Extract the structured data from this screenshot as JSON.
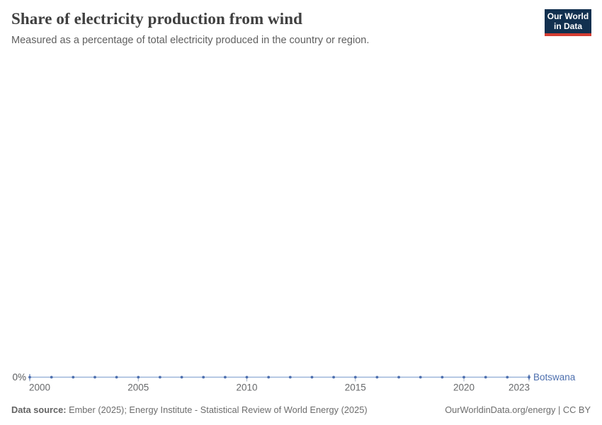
{
  "header": {
    "title": "Share of electricity production from wind",
    "subtitle": "Measured as a percentage of total electricity produced in the country or region.",
    "logo": {
      "line1": "Our World",
      "line2": "in Data",
      "bg_color": "#12304f",
      "accent_color": "#d43d32"
    }
  },
  "chart_data": {
    "type": "line",
    "title": "Share of electricity production from wind",
    "subtitle": "Measured as a percentage of total electricity produced in the country or region.",
    "unit": "%",
    "grid": false,
    "legend_position": "end-of-line",
    "x": [
      2000,
      2001,
      2002,
      2003,
      2004,
      2005,
      2006,
      2007,
      2008,
      2009,
      2010,
      2011,
      2012,
      2013,
      2014,
      2015,
      2016,
      2017,
      2018,
      2019,
      2020,
      2021,
      2022,
      2023
    ],
    "series": [
      {
        "name": "Botswana",
        "color": "#4d6fae",
        "line_color": "#9db5d9",
        "values": [
          0,
          0,
          0,
          0,
          0,
          0,
          0,
          0,
          0,
          0,
          0,
          0,
          0,
          0,
          0,
          0,
          0,
          0,
          0,
          0,
          0,
          0,
          0,
          0
        ]
      }
    ],
    "x_ticks": [
      2000,
      2005,
      2010,
      2015,
      2020,
      2023
    ],
    "y_ticks": [
      {
        "value": 0,
        "label": "0%"
      }
    ],
    "xlim": [
      2000,
      2023
    ],
    "ylim": [
      0,
      0
    ],
    "style": {
      "tick_label_color": "#67696b",
      "y_label_color": "#595b5d",
      "tick_color": "#a4b0bf"
    }
  },
  "footer": {
    "datasource_label": "Data source:",
    "datasource_text": " Ember (2025); Energy Institute - Statistical Review of World Energy (2025)",
    "link_text": "OurWorldinData.org/energy | CC BY"
  }
}
